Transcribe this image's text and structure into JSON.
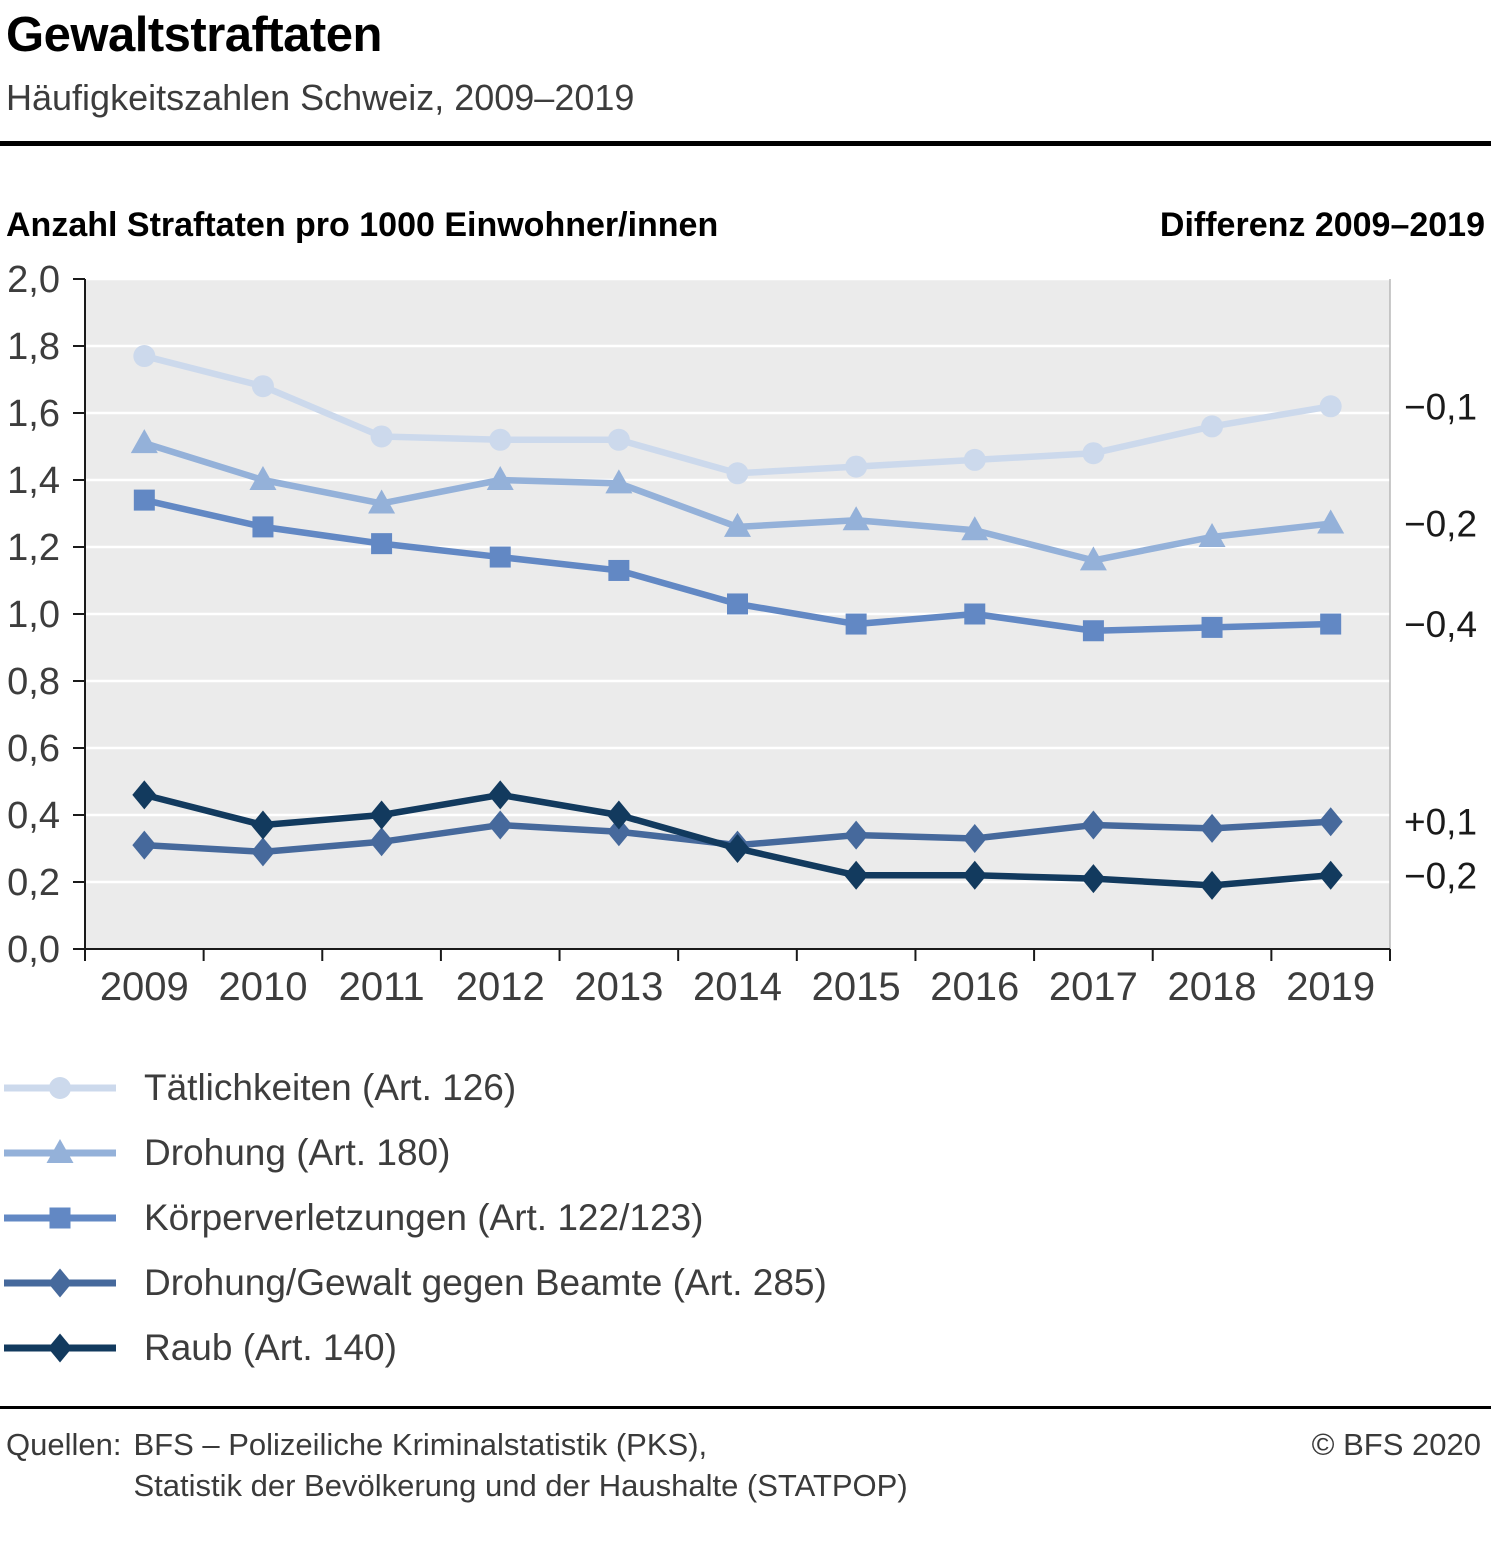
{
  "header": {
    "title": "Gewaltstraftaten",
    "subtitle": "Häufigkeitszahlen Schweiz, 2009–2019"
  },
  "chart_header": {
    "left": "Anzahl Straftaten pro 1000 Einwohner/innen",
    "right": "Differenz 2009–2019"
  },
  "chart_data": {
    "type": "line",
    "title": "Gewaltstraftaten",
    "subtitle": "Häufigkeitszahlen Schweiz, 2009–2019",
    "xlabel": "",
    "ylabel": "Anzahl Straftaten pro 1000 Einwohner/innen",
    "diff_header": "Differenz 2009–2019",
    "x": [
      2009,
      2010,
      2011,
      2012,
      2013,
      2014,
      2015,
      2016,
      2017,
      2018,
      2019
    ],
    "ylim": [
      0,
      2.0
    ],
    "ytick_step": 0.2,
    "grid": true,
    "legend_position": "below",
    "plot_background": "#ebebeb",
    "series": [
      {
        "name": "Tätlichkeiten (Art. 126)",
        "marker": "circle",
        "color": "#ccd9ec",
        "diff_label": "−0,1",
        "values": [
          1.77,
          1.68,
          1.53,
          1.52,
          1.52,
          1.42,
          1.44,
          1.46,
          1.48,
          1.56,
          1.62
        ]
      },
      {
        "name": "Drohung (Art. 180)",
        "marker": "triangle",
        "color": "#94b1d9",
        "diff_label": "−0,2",
        "values": [
          1.51,
          1.4,
          1.33,
          1.4,
          1.39,
          1.26,
          1.28,
          1.25,
          1.16,
          1.23,
          1.27
        ]
      },
      {
        "name": "Körperverletzungen (Art. 122/123)",
        "marker": "square",
        "color": "#6288c4",
        "diff_label": "−0,4",
        "values": [
          1.34,
          1.26,
          1.21,
          1.17,
          1.13,
          1.03,
          0.97,
          1.0,
          0.95,
          0.96,
          0.97
        ]
      },
      {
        "name": "Drohung/Gewalt gegen Beamte (Art. 285)",
        "marker": "diamond",
        "color": "#46699c",
        "diff_label": "+0,1",
        "values": [
          0.31,
          0.29,
          0.32,
          0.37,
          0.35,
          0.31,
          0.34,
          0.33,
          0.37,
          0.36,
          0.38
        ]
      },
      {
        "name": "Raub (Art. 140)",
        "marker": "diamond",
        "color": "#123a5e",
        "diff_label": "−0,2",
        "values": [
          0.46,
          0.37,
          0.4,
          0.46,
          0.4,
          0.3,
          0.22,
          0.22,
          0.21,
          0.19,
          0.22
        ]
      }
    ]
  },
  "footer": {
    "sources_label": "Quellen:",
    "source_line1": "BFS – Polizeiliche Kriminalstatistik (PKS),",
    "source_line2": "Statistik der Bevölkerung und der Haushalte (STATPOP)",
    "copyright": "© BFS 2020"
  }
}
